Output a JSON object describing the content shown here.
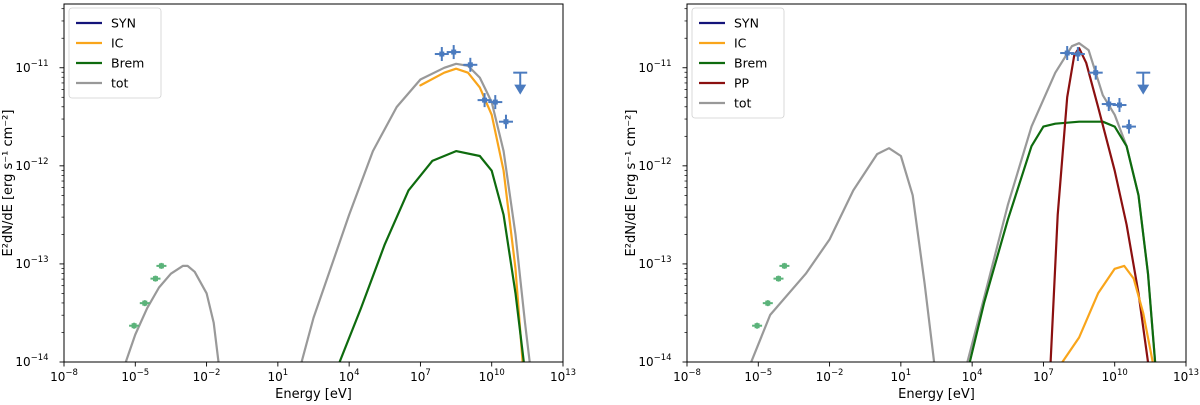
{
  "chart_data": [
    {
      "type": "line",
      "xlabel": "Energy [eV]",
      "ylabel": "E²dN/dE [erg s⁻¹ cm⁻²]",
      "xscale": "log",
      "yscale": "log",
      "xlim_log10": [
        -8,
        13
      ],
      "ylim_log10": [
        -14,
        -10.35
      ],
      "x_ticks": [
        {
          "base": "10",
          "exp": "−8",
          "log": -8
        },
        {
          "base": "10",
          "exp": "−5",
          "log": -5
        },
        {
          "base": "10",
          "exp": "−2",
          "log": -2
        },
        {
          "base": "10",
          "exp": "1",
          "log": 1
        },
        {
          "base": "10",
          "exp": "4",
          "log": 4
        },
        {
          "base": "10",
          "exp": "7",
          "log": 7
        },
        {
          "base": "10",
          "exp": "10",
          "log": 10
        },
        {
          "base": "10",
          "exp": "13",
          "log": 13
        }
      ],
      "y_ticks": [
        {
          "base": "10",
          "exp": "−14",
          "log": -14
        },
        {
          "base": "10",
          "exp": "−13",
          "log": -13
        },
        {
          "base": "10",
          "exp": "−12",
          "log": -12
        },
        {
          "base": "10",
          "exp": "−11",
          "log": -11
        }
      ],
      "legend": {
        "placement": "top-left",
        "entries": [
          {
            "label": "SYN",
            "color": "#14147a"
          },
          {
            "label": "IC",
            "color": "#f9a51b"
          },
          {
            "label": "Brem",
            "color": "#0e6b0e"
          },
          {
            "label": "tot",
            "color": "#999999"
          }
        ]
      },
      "series": [
        {
          "name": "tot",
          "color": "#999999",
          "points": [
            [
              -5.4,
              -14
            ],
            [
              -5,
              -13.72
            ],
            [
              -4.5,
              -13.45
            ],
            [
              -4,
              -13.24
            ],
            [
              -3.5,
              -13.1
            ],
            [
              -3,
              -13.02
            ],
            [
              -2.8,
              -13.02
            ],
            [
              -2.5,
              -13.08
            ],
            [
              -2,
              -13.3
            ],
            [
              -1.7,
              -13.6
            ],
            [
              -1.5,
              -14
            ]
          ]
        },
        {
          "name": "tot",
          "color": "#999999",
          "points": [
            [
              2,
              -14
            ],
            [
              2.5,
              -13.55
            ],
            [
              3,
              -13.2
            ],
            [
              4,
              -12.5
            ],
            [
              5,
              -11.85
            ],
            [
              6,
              -11.4
            ],
            [
              7,
              -11.12
            ],
            [
              8,
              -11
            ],
            [
              8.5,
              -10.96
            ],
            [
              9,
              -10.98
            ],
            [
              9.5,
              -11.1
            ],
            [
              10,
              -11.35
            ],
            [
              10.5,
              -11.85
            ],
            [
              11,
              -12.7
            ],
            [
              11.4,
              -13.6
            ],
            [
              11.6,
              -14
            ]
          ]
        },
        {
          "name": "IC",
          "color": "#f9a51b",
          "points": [
            [
              7,
              -11.18
            ],
            [
              8,
              -11.05
            ],
            [
              8.5,
              -11.01
            ],
            [
              9,
              -11.05
            ],
            [
              9.5,
              -11.2
            ],
            [
              10,
              -11.48
            ],
            [
              10.5,
              -12.05
            ],
            [
              11,
              -13.05
            ],
            [
              11.3,
              -14
            ]
          ]
        },
        {
          "name": "Brem",
          "color": "#0e6b0e",
          "points": [
            [
              3.6,
              -14
            ],
            [
              4.5,
              -13.45
            ],
            [
              5.5,
              -12.8
            ],
            [
              6.5,
              -12.25
            ],
            [
              7.5,
              -11.95
            ],
            [
              8.5,
              -11.85
            ],
            [
              9.5,
              -11.9
            ],
            [
              10,
              -12.05
            ],
            [
              10.5,
              -12.5
            ],
            [
              11,
              -13.3
            ],
            [
              11.35,
              -14
            ]
          ]
        }
      ],
      "data_points": [
        {
          "group": "radio",
          "color": "#5bb37a",
          "points": [
            [
              -5.05,
              -13.63
            ],
            [
              -4.6,
              -13.4
            ],
            [
              -4.15,
              -13.15
            ],
            [
              -3.9,
              -13.02
            ]
          ]
        },
        {
          "group": "gamma",
          "color": "#4b7bbf",
          "points": [
            [
              7.9,
              -10.86
            ],
            [
              8.4,
              -10.84
            ],
            [
              9.1,
              -10.97
            ],
            [
              9.7,
              -11.33
            ],
            [
              10.15,
              -11.35
            ],
            [
              10.6,
              -11.55
            ]
          ]
        },
        {
          "group": "upper-limits",
          "color": "#4b7bbf",
          "points": [
            [
              11.2,
              -11.05
            ]
          ]
        }
      ]
    },
    {
      "type": "line",
      "xlabel": "Energy [eV]",
      "ylabel": "E²dN/dE [erg s⁻¹ cm⁻²]",
      "xscale": "log",
      "yscale": "log",
      "xlim_log10": [
        -8,
        13
      ],
      "ylim_log10": [
        -14,
        -10.35
      ],
      "x_ticks": [
        {
          "base": "10",
          "exp": "−8",
          "log": -8
        },
        {
          "base": "10",
          "exp": "−5",
          "log": -5
        },
        {
          "base": "10",
          "exp": "−2",
          "log": -2
        },
        {
          "base": "10",
          "exp": "1",
          "log": 1
        },
        {
          "base": "10",
          "exp": "4",
          "log": 4
        },
        {
          "base": "10",
          "exp": "7",
          "log": 7
        },
        {
          "base": "10",
          "exp": "10",
          "log": 10
        },
        {
          "base": "10",
          "exp": "13",
          "log": 13
        }
      ],
      "y_ticks": [
        {
          "base": "10",
          "exp": "−14",
          "log": -14
        },
        {
          "base": "10",
          "exp": "−13",
          "log": -13
        },
        {
          "base": "10",
          "exp": "−12",
          "log": -12
        },
        {
          "base": "10",
          "exp": "−11",
          "log": -11
        }
      ],
      "legend": {
        "placement": "top-left",
        "entries": [
          {
            "label": "SYN",
            "color": "#14147a"
          },
          {
            "label": "IC",
            "color": "#f9a51b"
          },
          {
            "label": "Brem",
            "color": "#0e6b0e"
          },
          {
            "label": "PP",
            "color": "#8b1010"
          },
          {
            "label": "tot",
            "color": "#999999"
          }
        ]
      },
      "series": [
        {
          "name": "tot",
          "color": "#999999",
          "points": [
            [
              -5.3,
              -14
            ],
            [
              -4.5,
              -13.52
            ],
            [
              -3,
              -13.1
            ],
            [
              -2,
              -12.75
            ],
            [
              -1,
              -12.25
            ],
            [
              0,
              -11.88
            ],
            [
              0.5,
              -11.82
            ],
            [
              1,
              -11.9
            ],
            [
              1.5,
              -12.3
            ],
            [
              2,
              -13.2
            ],
            [
              2.4,
              -14
            ]
          ]
        },
        {
          "name": "tot",
          "color": "#999999",
          "points": [
            [
              3.8,
              -14
            ],
            [
              4.5,
              -13.35
            ],
            [
              5.5,
              -12.4
            ],
            [
              6.5,
              -11.6
            ],
            [
              7.5,
              -11.05
            ],
            [
              8.2,
              -10.78
            ],
            [
              8.5,
              -10.75
            ],
            [
              8.9,
              -10.82
            ],
            [
              9.5,
              -11.28
            ],
            [
              10,
              -11.48
            ],
            [
              10.5,
              -11.8
            ],
            [
              11,
              -12.3
            ],
            [
              11.4,
              -13.1
            ],
            [
              11.7,
              -14
            ]
          ]
        },
        {
          "name": "Brem",
          "color": "#0e6b0e",
          "points": [
            [
              3.9,
              -14
            ],
            [
              4.5,
              -13.4
            ],
            [
              5.5,
              -12.55
            ],
            [
              6.5,
              -11.8
            ],
            [
              7,
              -11.6
            ],
            [
              7.5,
              -11.57
            ],
            [
              8.5,
              -11.55
            ],
            [
              9.5,
              -11.55
            ],
            [
              10,
              -11.6
            ],
            [
              10.5,
              -11.8
            ],
            [
              11,
              -12.3
            ],
            [
              11.4,
              -13.1
            ],
            [
              11.7,
              -14
            ]
          ]
        },
        {
          "name": "PP",
          "color": "#8b1010",
          "points": [
            [
              7.3,
              -14
            ],
            [
              7.6,
              -12.5
            ],
            [
              8,
              -11.3
            ],
            [
              8.3,
              -10.87
            ],
            [
              8.5,
              -10.8
            ],
            [
              8.8,
              -10.95
            ],
            [
              9.3,
              -11.4
            ],
            [
              10,
              -12.05
            ],
            [
              10.5,
              -12.6
            ],
            [
              11,
              -13.3
            ],
            [
              11.4,
              -14
            ]
          ]
        },
        {
          "name": "IC",
          "color": "#f9a51b",
          "points": [
            [
              7.8,
              -14
            ],
            [
              8.5,
              -13.75
            ],
            [
              9.3,
              -13.3
            ],
            [
              10,
              -13.05
            ],
            [
              10.4,
              -13.02
            ],
            [
              10.8,
              -13.15
            ],
            [
              11.2,
              -13.5
            ],
            [
              11.6,
              -14
            ]
          ]
        }
      ],
      "data_points": [
        {
          "group": "radio",
          "color": "#5bb37a",
          "points": [
            [
              -5.05,
              -13.63
            ],
            [
              -4.6,
              -13.4
            ],
            [
              -4.15,
              -13.15
            ],
            [
              -3.9,
              -13.02
            ]
          ]
        },
        {
          "group": "gamma",
          "color": "#4b7bbf",
          "points": [
            [
              8,
              -10.85
            ],
            [
              8.45,
              -10.86
            ],
            [
              9.2,
              -11.05
            ],
            [
              9.75,
              -11.37
            ],
            [
              10.2,
              -11.38
            ],
            [
              10.6,
              -11.6
            ]
          ]
        },
        {
          "group": "upper-limits",
          "color": "#4b7bbf",
          "points": [
            [
              11.2,
              -11.05
            ]
          ]
        }
      ]
    }
  ]
}
